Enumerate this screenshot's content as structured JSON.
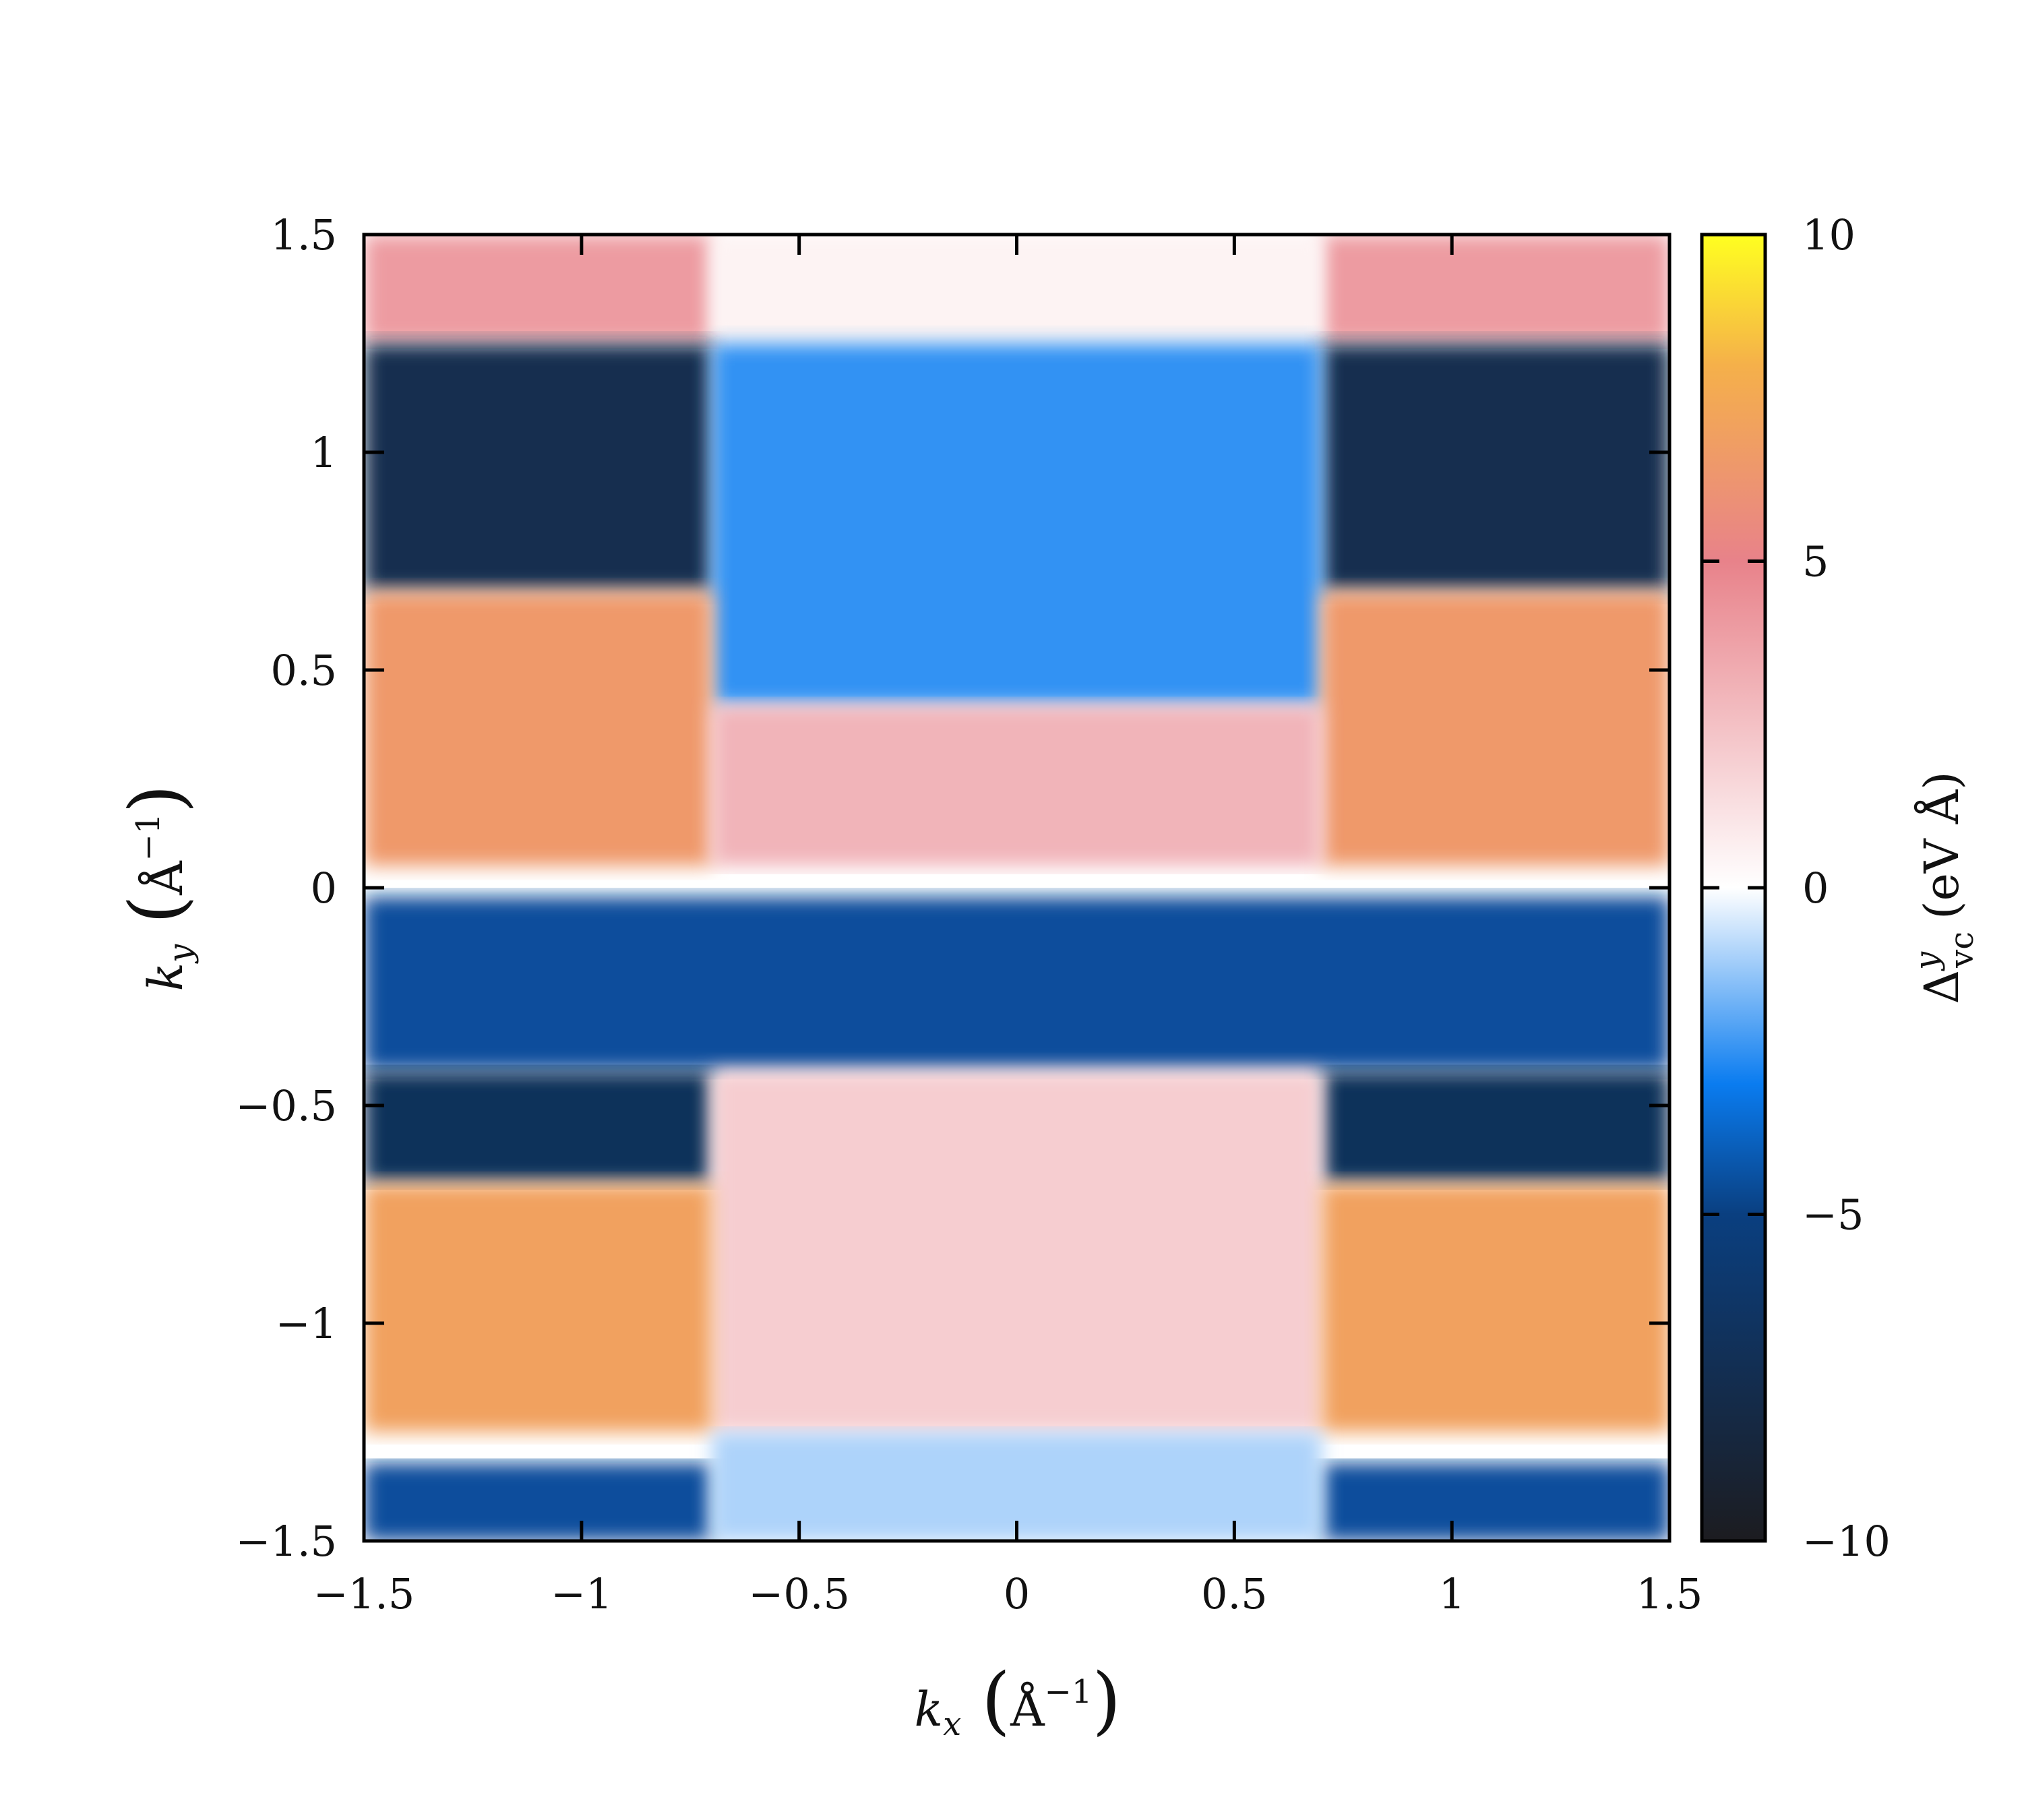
{
  "chart_data": {
    "type": "heatmap",
    "title": "",
    "xlabel": {
      "symbol": "k",
      "sub": "x",
      "unit": "Å",
      "sup": "−1"
    },
    "ylabel": {
      "symbol": "k",
      "sub": "y",
      "unit": "Å",
      "sup": "−1"
    },
    "xlim": [
      -1.5,
      1.5
    ],
    "ylim": [
      -1.5,
      1.5
    ],
    "xticks": [
      -1.5,
      -1,
      -0.5,
      0,
      0.5,
      1,
      1.5
    ],
    "yticks": [
      -1.5,
      -1,
      -0.5,
      0,
      0.5,
      1,
      1.5
    ],
    "xtick_labels": [
      "−1.5",
      "−1",
      "−0.5",
      "0",
      "0.5",
      "1",
      "1.5"
    ],
    "ytick_labels": [
      "−1.5",
      "−1",
      "−0.5",
      "0",
      "0.5",
      "1",
      "1.5"
    ],
    "colorbar": {
      "label": {
        "symbol": "Δ",
        "sup": "y",
        "sub": "vc",
        "unit": "(eV Å)"
      },
      "range": [
        -10,
        10
      ],
      "ticks": [
        -10,
        -5,
        0,
        5,
        10
      ],
      "tick_labels": [
        "−10",
        "−5",
        "0",
        "5",
        "10"
      ],
      "colormap": [
        "#1c1c20",
        "#0a3f80",
        "#0a7cf0",
        "#ffffff",
        "#e8828a",
        "#f5b04a",
        "#ffff20"
      ]
    },
    "grid": false,
    "regions": [
      {
        "kx": [
          -1.5,
          -0.7
        ],
        "ky": [
          1.25,
          1.5
        ],
        "value": 4
      },
      {
        "kx": [
          0.7,
          1.5
        ],
        "ky": [
          1.25,
          1.5
        ],
        "value": 4
      },
      {
        "kx": [
          -0.7,
          0.7
        ],
        "ky": [
          1.25,
          1.5
        ],
        "value": 0.5
      },
      {
        "kx": [
          -1.5,
          -0.7
        ],
        "ky": [
          0.68,
          1.25
        ],
        "value": -7.5
      },
      {
        "kx": [
          0.7,
          1.5
        ],
        "ky": [
          0.68,
          1.25
        ],
        "value": -7.5
      },
      {
        "kx": [
          -0.7,
          0.7
        ],
        "ky": [
          0.42,
          1.25
        ],
        "value": -2.5
      },
      {
        "kx": [
          -1.5,
          -0.7
        ],
        "ky": [
          0.05,
          0.68
        ],
        "value": 6.5
      },
      {
        "kx": [
          0.7,
          1.5
        ],
        "ky": [
          0.05,
          0.68
        ],
        "value": 6.5
      },
      {
        "kx": [
          -0.7,
          0.7
        ],
        "ky": [
          0.05,
          0.42
        ],
        "value": 3
      },
      {
        "kx": [
          -1.5,
          1.5
        ],
        "ky": [
          -0.42,
          -0.02
        ],
        "value": -4.5
      },
      {
        "kx": [
          -1.5,
          -0.7
        ],
        "ky": [
          -0.68,
          -0.42
        ],
        "value": -7
      },
      {
        "kx": [
          0.7,
          1.5
        ],
        "ky": [
          -0.68,
          -0.42
        ],
        "value": -7
      },
      {
        "kx": [
          -0.7,
          0.7
        ],
        "ky": [
          -1.25,
          -0.42
        ],
        "value": 2
      },
      {
        "kx": [
          -1.5,
          -0.7
        ],
        "ky": [
          -1.25,
          -0.68
        ],
        "value": 7
      },
      {
        "kx": [
          0.7,
          1.5
        ],
        "ky": [
          -1.25,
          -0.68
        ],
        "value": 7
      },
      {
        "kx": [
          -1.5,
          -0.7
        ],
        "ky": [
          -1.5,
          -1.32
        ],
        "value": -4.5
      },
      {
        "kx": [
          0.7,
          1.5
        ],
        "ky": [
          -1.5,
          -1.32
        ],
        "value": -4.5
      },
      {
        "kx": [
          -0.7,
          0.7
        ],
        "ky": [
          -1.5,
          -1.25
        ],
        "value": -1
      }
    ]
  }
}
